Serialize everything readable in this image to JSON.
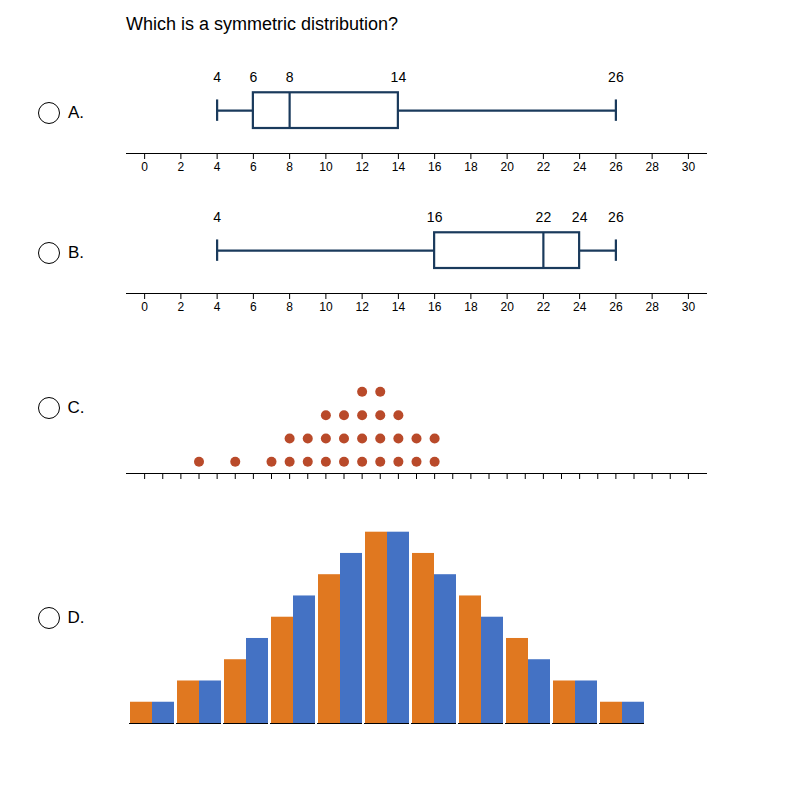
{
  "title": "Which is a symmetric distribution?",
  "chart_data": [
    {
      "type": "boxplot",
      "title": "A.",
      "min": 4,
      "q1": 6,
      "median": 8,
      "q3": 14,
      "max": 26,
      "color": "#1a3a5c",
      "xlim": [
        -1,
        31
      ],
      "xticks": [
        0,
        2,
        4,
        6,
        8,
        10,
        12,
        14,
        16,
        18,
        20,
        22,
        24,
        26,
        28,
        30
      ],
      "data_labels": true
    },
    {
      "type": "boxplot",
      "title": "B.",
      "min": 4,
      "q1": 16,
      "median": 22,
      "q3": 24,
      "max": 26,
      "color": "#1a3a5c",
      "xlim": [
        -1,
        31
      ],
      "xticks": [
        0,
        2,
        4,
        6,
        8,
        10,
        12,
        14,
        16,
        18,
        20,
        22,
        24,
        26,
        28,
        30
      ],
      "data_labels": true
    },
    {
      "type": "dot",
      "title": "C.",
      "x": [
        3,
        5,
        7,
        8,
        9,
        10,
        11,
        12,
        13,
        14,
        15,
        16
      ],
      "values": [
        1,
        1,
        1,
        2,
        2,
        3,
        3,
        4,
        4,
        3,
        2,
        2
      ],
      "color": "#b94a2a",
      "xlim": [
        -1,
        31
      ],
      "xticks": [
        0,
        1,
        2,
        3,
        4,
        5,
        6,
        7,
        8,
        9,
        10,
        11,
        12,
        13,
        14,
        15,
        16,
        17,
        18,
        19,
        20,
        21,
        22,
        23,
        24,
        25,
        26,
        27,
        28,
        29,
        30
      ],
      "ylim": [
        0,
        6
      ],
      "tick_labels": false
    },
    {
      "type": "bar",
      "title": "D.",
      "categories": [
        null,
        null,
        null,
        null,
        null,
        null,
        null,
        null,
        null,
        null,
        null
      ],
      "series": [
        {
          "color": "#e07820",
          "values": [
            1,
            2,
            3,
            5,
            7,
            9,
            8,
            6,
            4,
            2,
            1
          ]
        },
        {
          "color": "#4472c4",
          "values": [
            1,
            2,
            4,
            6,
            8,
            9,
            7,
            5,
            3,
            2,
            1
          ]
        }
      ],
      "ylim": [
        0,
        10.35
      ],
      "tick_labels": false
    }
  ]
}
